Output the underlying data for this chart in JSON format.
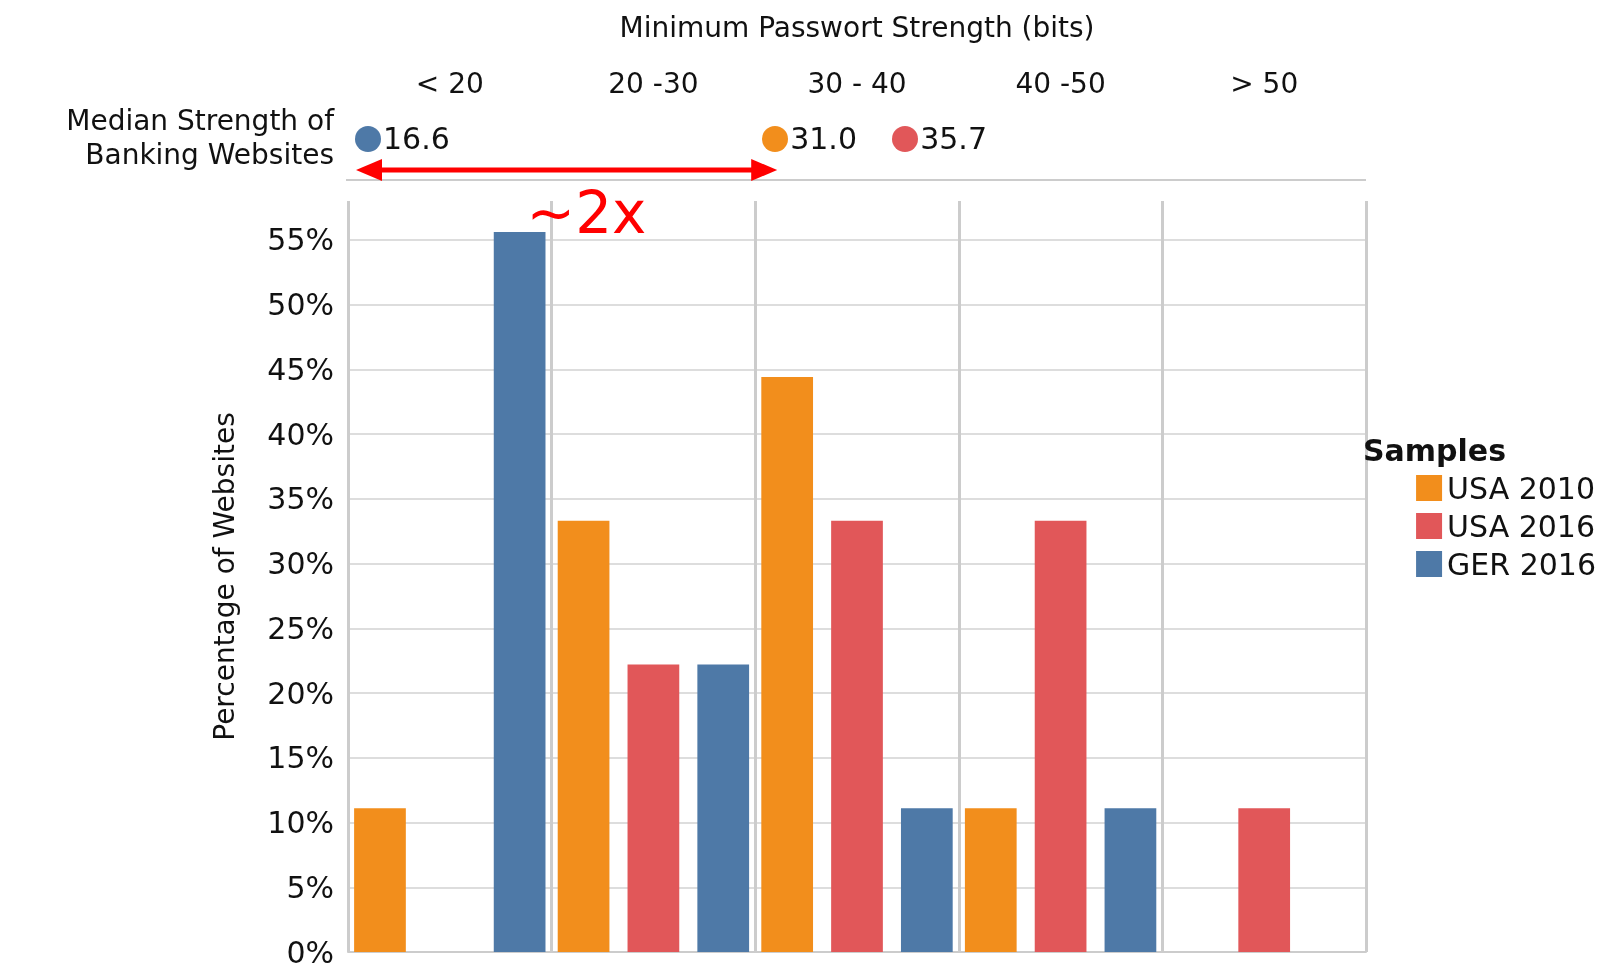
{
  "chart_data": {
    "type": "bar",
    "xlabel": "Minimum Passwort Strength (bits)",
    "ylabel": "Percentage of Websites",
    "legend_title": "Samples",
    "legend": "right",
    "categories": [
      "< 20",
      "20 -30",
      "30 - 40",
      "40 -50",
      "> 50"
    ],
    "series": [
      {
        "name": "USA 2010",
        "color": "#f28e1c",
        "values": [
          11.1,
          33.3,
          44.4,
          11.1,
          null
        ]
      },
      {
        "name": "USA 2016",
        "color": "#e15759",
        "values": [
          null,
          22.2,
          33.3,
          33.3,
          11.1
        ]
      },
      {
        "name": "GER 2016",
        "color": "#4e79a7",
        "values": [
          55.6,
          22.2,
          11.1,
          11.1,
          null
        ]
      }
    ],
    "ylim": [
      0,
      58
    ],
    "yticks": [
      {
        "value": 0,
        "label": "0%"
      },
      {
        "value": 5,
        "label": "5%"
      },
      {
        "value": 10,
        "label": "10%"
      },
      {
        "value": 15,
        "label": "15%"
      },
      {
        "value": 20,
        "label": "20%"
      },
      {
        "value": 25,
        "label": "25%"
      },
      {
        "value": 30,
        "label": "30%"
      },
      {
        "value": 35,
        "label": "35%"
      },
      {
        "value": 40,
        "label": "40%"
      },
      {
        "value": 45,
        "label": "45%"
      },
      {
        "value": 50,
        "label": "50%"
      },
      {
        "value": 55,
        "label": "55%"
      }
    ],
    "grid": true,
    "annotations": [
      "Median Strength of Banking Websites",
      "16.6",
      "31.0",
      "35.7",
      "~2x"
    ]
  }
}
